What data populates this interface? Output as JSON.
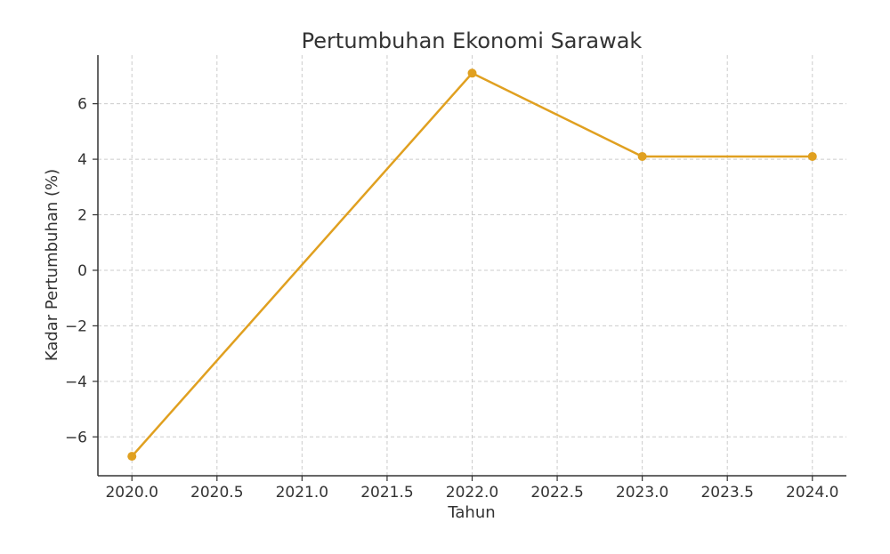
{
  "chart_data": {
    "type": "line",
    "title": "Pertumbuhan Ekonomi Sarawak",
    "xlabel": "Tahun",
    "ylabel": "Kadar Pertumbuhan (%)",
    "x": [
      2020,
      2022,
      2023,
      2024
    ],
    "values": [
      -6.7,
      7.1,
      4.1,
      4.1
    ],
    "xlim": [
      2019.8,
      2024.2
    ],
    "ylim": [
      -7.4,
      7.75
    ],
    "xticks": [
      2020.0,
      2020.5,
      2021.0,
      2021.5,
      2022.0,
      2022.5,
      2023.0,
      2023.5,
      2024.0
    ],
    "xtick_labels": [
      "2020.0",
      "2020.5",
      "2021.0",
      "2021.5",
      "2022.0",
      "2022.5",
      "2023.0",
      "2023.5",
      "2024.0"
    ],
    "yticks": [
      -6,
      -4,
      -2,
      0,
      2,
      4,
      6
    ],
    "ytick_labels": [
      "−6",
      "−4",
      "−2",
      "0",
      "2",
      "4",
      "6"
    ],
    "grid": true,
    "marker": "circle",
    "color": "#e0a020"
  }
}
